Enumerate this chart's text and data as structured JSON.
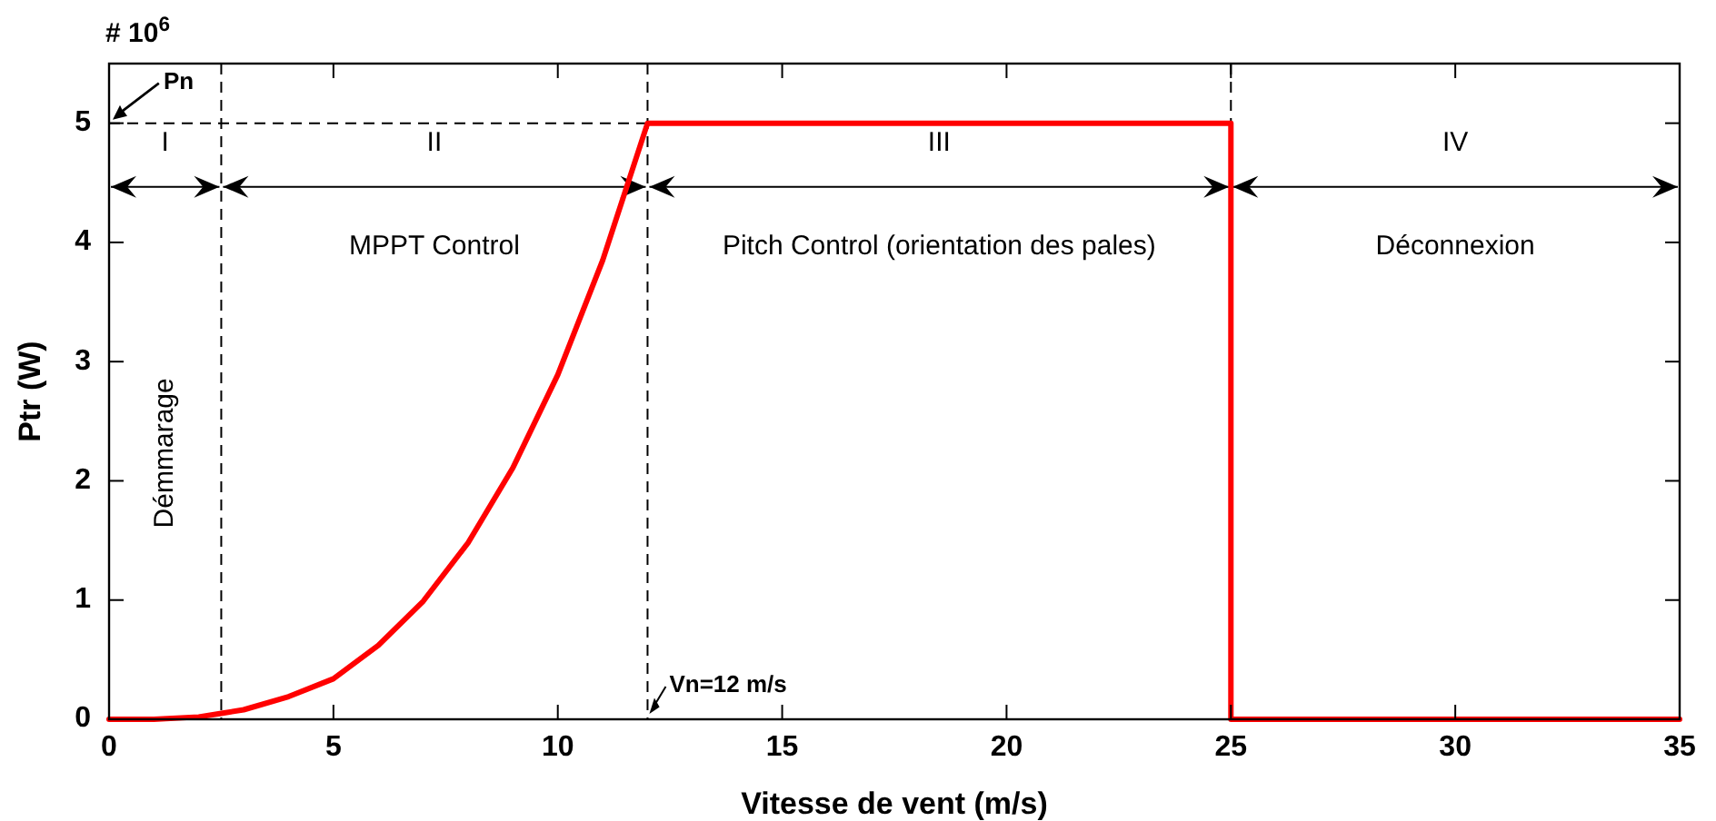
{
  "chart_data": {
    "type": "line",
    "xlabel": "Vitesse de vent (m/s)",
    "ylabel": "Ptr (W)",
    "xlim": [
      0,
      35
    ],
    "xticks": [
      0,
      5,
      10,
      15,
      20,
      25,
      30,
      35
    ],
    "ylim": [
      0,
      5.5
    ],
    "yticks": [
      0,
      1,
      2,
      3,
      4,
      5
    ],
    "series": [
      {
        "color": "#ff0000",
        "x": [
          0,
          1,
          2,
          2.5,
          3,
          4,
          5,
          6,
          7,
          8,
          9,
          10,
          11,
          12,
          25,
          25,
          35
        ],
        "values": [
          0,
          0,
          0.02,
          0.05,
          0.08,
          0.19,
          0.34,
          0.62,
          0.99,
          1.48,
          2.11,
          2.89,
          3.85,
          5,
          5,
          0,
          0
        ]
      }
    ],
    "ref_lines": [
      {
        "axis": "x",
        "value": 2.5,
        "line_style": "dashed",
        "color": "#000000"
      },
      {
        "axis": "x",
        "value": 12,
        "label": "Vn=12 m/s",
        "line_style": "dashed",
        "color": "#000000"
      },
      {
        "axis": "x",
        "value": 25,
        "line_style": "dashed",
        "color": "#000000"
      },
      {
        "axis": "y",
        "value": 5,
        "label": "Pn",
        "line_style": "dashed",
        "color": "#000000"
      }
    ],
    "annotations": [
      "# 10$^{6}$",
      "I",
      "II",
      "III",
      "IV",
      "Démmarage",
      "MPPT Control",
      "Pitch Control (orientation des pales)",
      "Déconnexion"
    ],
    "grid": false,
    "marker": "none",
    "line_style": "solid"
  }
}
